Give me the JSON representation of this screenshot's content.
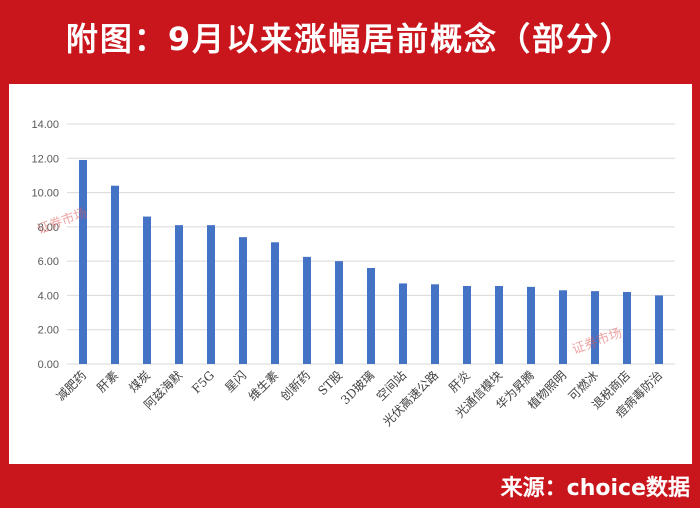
{
  "title": "附图：9月以来涨幅居前概念（部分）",
  "source": "来源：choice数据",
  "watermark": "证券市场",
  "colors": {
    "frame": "#c9161d",
    "bar": "#4472c4",
    "grid": "#d9d9d9",
    "title_text": "#ffffff"
  },
  "chart_data": {
    "type": "bar",
    "title": "",
    "xlabel": "",
    "ylabel": "",
    "ylim": [
      0,
      14
    ],
    "yticks": [
      "0.00",
      "2.00",
      "4.00",
      "6.00",
      "8.00",
      "10.00",
      "12.00",
      "14.00"
    ],
    "grid": true,
    "categories": [
      "减肥药",
      "肝素",
      "煤炭",
      "阿兹海默",
      "F5G",
      "星闪",
      "维生素",
      "创新药",
      "ST股",
      "3D玻璃",
      "空间站",
      "光伏高速公路",
      "肝炎",
      "光通信模块",
      "华为昇腾",
      "植物照明",
      "可燃冰",
      "退税商店",
      "痘病毒防治"
    ],
    "values": [
      11.9,
      10.4,
      8.6,
      8.1,
      8.1,
      7.4,
      7.1,
      6.25,
      6.0,
      5.6,
      4.7,
      4.65,
      4.55,
      4.55,
      4.5,
      4.3,
      4.25,
      4.2,
      4.0
    ]
  }
}
